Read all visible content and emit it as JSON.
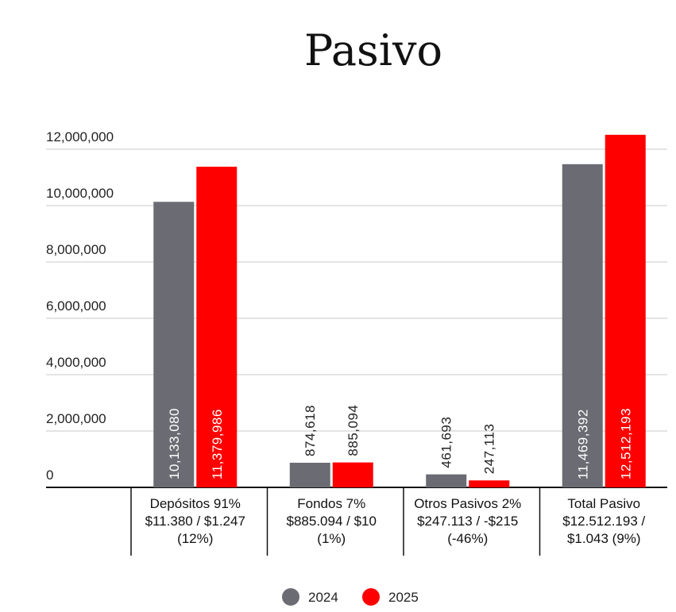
{
  "chart_data": {
    "type": "bar",
    "title": "Pasivo",
    "categories": [
      [
        "Depósitos 91%",
        "$11.380 / $1.247",
        "(12%)"
      ],
      [
        "Fondos 7%",
        "$885.094 / $10",
        "(1%)"
      ],
      [
        "Otros Pasivos 2%",
        "$247.113 / -$215",
        "(-46%)"
      ],
      [
        "Total Pasivo",
        "$12.512.193 /",
        "$1.043 (9%)"
      ]
    ],
    "series": [
      {
        "name": "2024",
        "color": "#6b6b73",
        "values": [
          10133080,
          874618,
          461693,
          11469392
        ],
        "value_labels": [
          "10,133,080",
          "874,618",
          "461,693",
          "11,469,392"
        ]
      },
      {
        "name": "2025",
        "color": "#ff0000",
        "values": [
          11379986,
          885094,
          247113,
          12512193
        ],
        "value_labels": [
          "11,379,986",
          "885,094",
          "247,113",
          "12,512,193"
        ]
      }
    ],
    "ylim": [
      0,
      12000000
    ],
    "yticks": [
      0,
      {
        "value": 2000000,
        "label": "2,000,000"
      },
      {
        "value": 4000000,
        "label": "4,000,000"
      },
      {
        "value": 6000000,
        "label": "6,000,000"
      },
      {
        "value": 8000000,
        "label": "8,000,000"
      },
      {
        "value": 10000000,
        "label": "10,000,000"
      },
      {
        "value": 12000000,
        "label": "12,000,000"
      }
    ],
    "grid": true,
    "legend": "bottom"
  }
}
